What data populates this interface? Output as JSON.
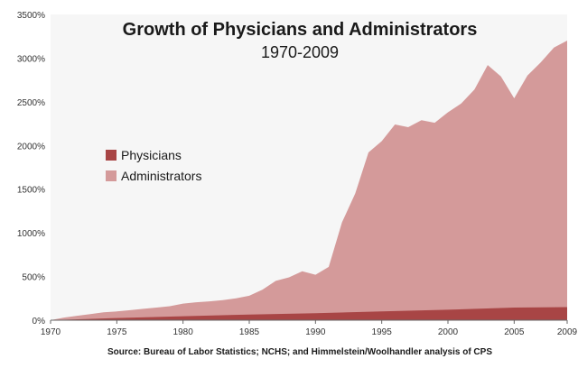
{
  "chart_data": {
    "type": "area",
    "title": "Growth of Physicians and Administrators",
    "subtitle": "1970-2009",
    "source": "Source: Bureau of Labor Statistics; NCHS; and Himmelstein/Woolhandler analysis of CPS",
    "xlim": [
      1970,
      2009
    ],
    "ylim": [
      0,
      3500
    ],
    "y_ticks": [
      "0%",
      "500%",
      "1000%",
      "1500%",
      "2000%",
      "2500%",
      "3000%",
      "3500%"
    ],
    "x_ticks": [
      "1970",
      "1975",
      "1980",
      "1985",
      "1990",
      "1995",
      "2000",
      "2005",
      "2009"
    ],
    "x_tick_values": [
      1970,
      1975,
      1980,
      1985,
      1990,
      1995,
      2000,
      2005,
      2009
    ],
    "legend_position": "left-center",
    "grid": false,
    "series": [
      {
        "name": "Administrators",
        "color": "#d49a9a",
        "x": [
          1970,
          1971,
          1972,
          1973,
          1974,
          1975,
          1976,
          1977,
          1978,
          1979,
          1980,
          1981,
          1982,
          1983,
          1984,
          1985,
          1986,
          1987,
          1988,
          1989,
          1990,
          1991,
          1992,
          1993,
          1994,
          1995,
          1996,
          1997,
          1998,
          1999,
          2000,
          2001,
          2002,
          2003,
          2004,
          2005,
          2006,
          2007,
          2008,
          2009
        ],
        "values": [
          0,
          30,
          50,
          70,
          90,
          100,
          115,
          130,
          145,
          160,
          190,
          205,
          215,
          230,
          250,
          280,
          350,
          450,
          490,
          560,
          520,
          610,
          1120,
          1450,
          1920,
          2050,
          2240,
          2210,
          2290,
          2260,
          2380,
          2480,
          2640,
          2920,
          2790,
          2540,
          2800,
          2950,
          3120,
          3200
        ]
      },
      {
        "name": "Physicians",
        "color": "#a84545",
        "x": [
          1970,
          1975,
          1980,
          1985,
          1990,
          1995,
          2000,
          2005,
          2009
        ],
        "values": [
          0,
          25,
          45,
          65,
          80,
          100,
          120,
          145,
          150
        ]
      }
    ]
  }
}
